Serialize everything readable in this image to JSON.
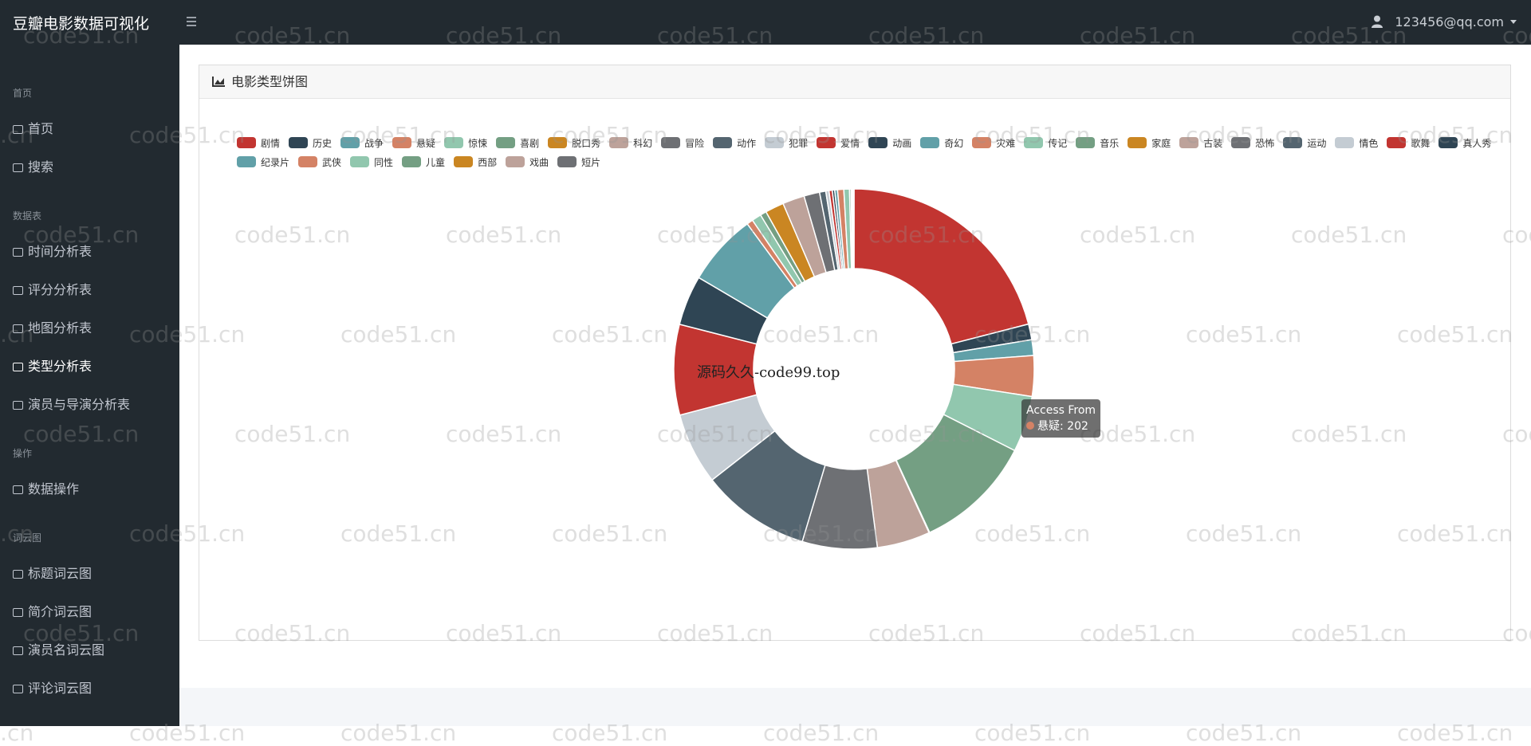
{
  "header": {
    "title": "豆瓣电影数据可视化",
    "user": "123456@qq.com"
  },
  "sidebar": [
    {
      "section": "首页",
      "items": [
        "首页",
        "搜索"
      ]
    },
    {
      "section": "数据表",
      "items": [
        "时间分析表",
        "评分分析表",
        "地图分析表",
        "类型分析表",
        "演员与导演分析表"
      ]
    },
    {
      "section": "操作",
      "items": [
        "数据操作"
      ]
    },
    {
      "section": "词云图",
      "items": [
        "标题词云图",
        "简介词云图",
        "演员名词云图",
        "评论词云图"
      ]
    }
  ],
  "active_item": "类型分析表",
  "card": {
    "title": "电影类型饼图"
  },
  "chart_data": {
    "type": "pie",
    "categories": [
      "剧情",
      "历史",
      "战争",
      "悬疑",
      "惊悚",
      "喜剧",
      "脱口秀",
      "科幻",
      "冒险",
      "动作",
      "犯罪",
      "爱情",
      "动画",
      "奇幻",
      "灾难",
      "传记",
      "音乐",
      "家庭",
      "古装",
      "恐怖",
      "运动",
      "情色",
      "歌舞",
      "真人秀",
      "纪录片",
      "武侠",
      "同性",
      "儿童",
      "西部",
      "戏曲",
      "短片"
    ],
    "values": [
      1163,
      78,
      78,
      202,
      279,
      589,
      3,
      264,
      372,
      543,
      357,
      450,
      248,
      357,
      31,
      47,
      31,
      93,
      109,
      78,
      31,
      16,
      16,
      12,
      14,
      31,
      28,
      8,
      5,
      5,
      4
    ],
    "colors": [
      "#c23531",
      "#2f4554",
      "#61a0a8",
      "#d48265",
      "#91c7ae",
      "#749f83",
      "#ca8622",
      "#bda29a",
      "#6e7074",
      "#546570",
      "#c4ccd3"
    ],
    "tooltip": {
      "title": "Access From",
      "index": 3,
      "separator": ":"
    }
  },
  "watermarks": {
    "grid": "code51.cn",
    "center": "源码久久-code99.top"
  }
}
